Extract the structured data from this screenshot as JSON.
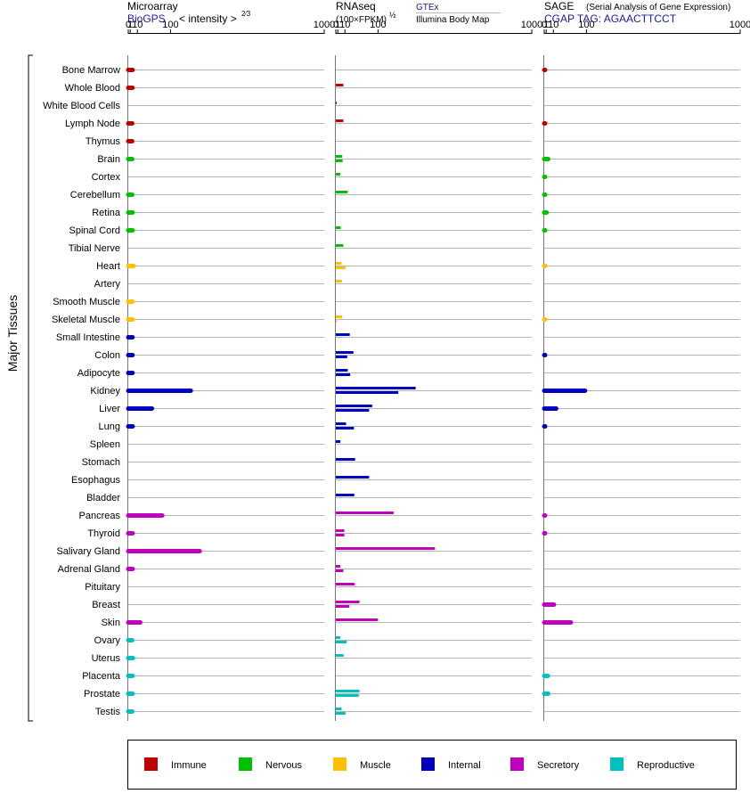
{
  "chart_data": {
    "type": "bar",
    "ylabel": "Major Tissues",
    "ticks": [
      0,
      1,
      10,
      100,
      1000
    ],
    "tick_labels": [
      "0",
      "1",
      "10",
      "100",
      "1000"
    ],
    "categories": [
      "Bone Marrow",
      "Whole Blood",
      "White Blood Cells",
      "Lymph Node",
      "Thymus",
      "Brain",
      "Cortex",
      "Cerebellum",
      "Retina",
      "Spinal Cord",
      "Tibial Nerve",
      "Heart",
      "Artery",
      "Smooth Muscle",
      "Skeletal Muscle",
      "Small Intestine",
      "Colon",
      "Adipocyte",
      "Kidney",
      "Liver",
      "Lung",
      "Spleen",
      "Stomach",
      "Esophagus",
      "Bladder",
      "Pancreas",
      "Thyroid",
      "Salivary Gland",
      "Adrenal Gland",
      "Pituitary",
      "Breast",
      "Skin",
      "Ovary",
      "Uterus",
      "Placenta",
      "Prostate",
      "Testis"
    ],
    "groups": [
      "immune",
      "immune",
      "immune",
      "immune",
      "immune",
      "nervous",
      "nervous",
      "nervous",
      "nervous",
      "nervous",
      "nervous",
      "muscle",
      "muscle",
      "muscle",
      "muscle",
      "internal",
      "internal",
      "internal",
      "internal",
      "internal",
      "internal",
      "internal",
      "internal",
      "internal",
      "internal",
      "secretory",
      "secretory",
      "secretory",
      "secretory",
      "secretory",
      "secretory",
      "secretory",
      "reproductive",
      "reproductive",
      "reproductive",
      "reproductive",
      "reproductive"
    ],
    "colors": {
      "immune": "#c00000",
      "nervous": "#00c000",
      "muscle": "#ffc000",
      "internal": "#0000c0",
      "secretory": "#c000c0",
      "reproductive": "#00c0c0"
    },
    "panels": [
      {
        "id": "microarray",
        "title": "Microarray",
        "subtitle": "BioGPS",
        "scale_note": "< intensity >",
        "exponent": "2⁄3",
        "values": [
          [
            3.3
          ],
          [
            3.2
          ],
          [],
          [
            2.9
          ],
          [
            2.8
          ],
          [
            2.8
          ],
          [],
          [
            2.9
          ],
          [
            3.4
          ],
          [
            3.3
          ],
          [],
          [
            4.5
          ],
          [],
          [
            3.3
          ],
          [
            3.5
          ],
          [
            3.2
          ],
          [
            3.2
          ],
          [
            3.2
          ],
          [
            180
          ],
          [
            42
          ],
          [
            3.4
          ],
          [],
          [],
          [],
          [],
          [
            72
          ],
          [
            3.4
          ],
          [
            220
          ],
          [
            3.4
          ],
          [],
          [],
          [
            15
          ],
          [
            2.8
          ],
          [
            3.7
          ],
          [
            3.2
          ],
          [
            3.3
          ],
          [
            2.9
          ]
        ]
      },
      {
        "id": "rnaseq",
        "title": "RNAseq",
        "subtitle": "(100×FPKM)",
        "exponent": "½",
        "source_1": "GTEx",
        "source_2": "Illumina Body Map",
        "values": [
          [],
          [
            7.5
          ],
          [
            0.001
          ],
          [
            7.5
          ],
          [],
          [
            6,
            6.5
          ],
          [
            3.5
          ],
          [
            15
          ],
          [],
          [
            4
          ],
          [
            7.5
          ],
          [
            5,
            11
          ],
          [
            5.5
          ],
          [],
          [
            6,
            0.002
          ],
          [
            19
          ],
          [
            27,
            14
          ],
          [
            15,
            20
          ],
          [
            260,
            180
          ],
          [
            80,
            70
          ],
          [
            12,
            28
          ],
          [
            3.5
          ],
          [
            31
          ],
          [
            70
          ],
          [
            29
          ],
          [
            160
          ],
          [
            9,
            9
          ],
          [
            360
          ],
          [
            3.5,
            7.5
          ],
          [
            30
          ],
          [
            42,
            18
          ],
          [
            100
          ],
          [
            3.5,
            13
          ],
          [
            8
          ],
          [],
          [
            42,
            40
          ],
          [
            5,
            11
          ]
        ]
      },
      {
        "id": "sage",
        "title": "SAGE",
        "subtitle_note": "(Serial Analysis of Gene Expression)",
        "tag": "CGAP TAG: AGAACTTCCT",
        "values": [
          [
            0.003
          ],
          [],
          [],
          [
            0.003
          ],
          [],
          [
            2.8
          ],
          [
            0.002
          ],
          [
            0.002
          ],
          [
            1.3
          ],
          [
            0.002
          ],
          [],
          [
            0.001
          ],
          [],
          [],
          [
            0.001
          ],
          [],
          [
            0.003
          ],
          [],
          [
            95
          ],
          [
            15
          ],
          [
            0.002
          ],
          [],
          [],
          [],
          [],
          [
            0.003
          ],
          [
            0.003
          ],
          [],
          [],
          [],
          [
            11
          ],
          [
            50
          ],
          [],
          [],
          [
            2.5
          ],
          [
            2.8
          ],
          []
        ]
      }
    ],
    "legend": [
      {
        "key": "immune",
        "label": "Immune"
      },
      {
        "key": "nervous",
        "label": "Nervous"
      },
      {
        "key": "muscle",
        "label": "Muscle"
      },
      {
        "key": "internal",
        "label": "Internal"
      },
      {
        "key": "secretory",
        "label": "Secretory"
      },
      {
        "key": "reproductive",
        "label": "Reproductive"
      }
    ]
  }
}
